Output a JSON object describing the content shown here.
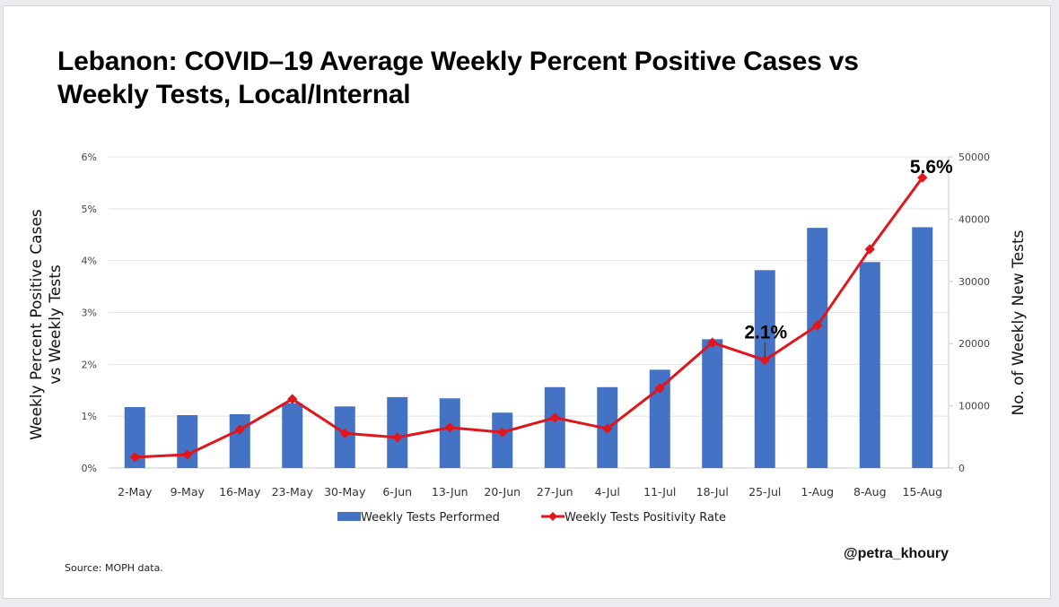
{
  "title_lines": [
    "Lebanon: COVID–19 Average Weekly Percent Positive Cases vs",
    "Weekly Tests, Local/Internal"
  ],
  "source": "Source: MOPH data.",
  "handle": "@petra_khoury",
  "colors": {
    "bar": "#4472c4",
    "line": "#e0161d",
    "grid": "#e3e3e3",
    "axis": "#c8c8c8"
  },
  "chart_data": {
    "type": "bar+line",
    "title": "Lebanon: COVID–19 Average Weekly Percent Positive Cases vs Weekly Tests, Local/Internal",
    "categories": [
      "2-May",
      "9-May",
      "16-May",
      "23-May",
      "30-May",
      "6-Jun",
      "13-Jun",
      "20-Jun",
      "27-Jun",
      "4-Jul",
      "11-Jul",
      "18-Jul",
      "25-Jul",
      "1-Aug",
      "8-Aug",
      "15-Aug"
    ],
    "series": [
      {
        "name": "Weekly Tests Performed",
        "type": "bar",
        "axis": "right",
        "values": [
          9800,
          8500,
          8650,
          10400,
          9900,
          11400,
          11200,
          8900,
          13000,
          13000,
          15800,
          20700,
          31800,
          38600,
          33100,
          38700
        ]
      },
      {
        "name": "Weekly Tests Positivity Rate",
        "type": "line",
        "axis": "left",
        "unit": "%",
        "values": [
          0.21,
          0.26,
          0.74,
          1.33,
          0.67,
          0.59,
          0.78,
          0.69,
          0.97,
          0.76,
          1.54,
          2.42,
          2.08,
          2.75,
          4.22,
          5.6
        ]
      }
    ],
    "ylabel_left": "Weekly Percent Positive Cases vs Weekly Tests",
    "ylabel_left_lines": [
      "Weekly Percent Positive Cases",
      "vs Weekly Tests"
    ],
    "ylabel_right": "No. of Weekly New Tests",
    "ylim_left": [
      0,
      6
    ],
    "yticks_left": [
      "0%",
      "1%",
      "2%",
      "3%",
      "4%",
      "5%",
      "6%"
    ],
    "ylim_right": [
      0,
      50000
    ],
    "yticks_right": [
      "0",
      "10000",
      "20000",
      "30000",
      "40000",
      "50000"
    ],
    "grid": true,
    "legend_position": "bottom",
    "annotations": [
      {
        "category": "25-Jul",
        "text": "2.1%"
      },
      {
        "category": "15-Aug",
        "text": "5.6%"
      }
    ]
  }
}
